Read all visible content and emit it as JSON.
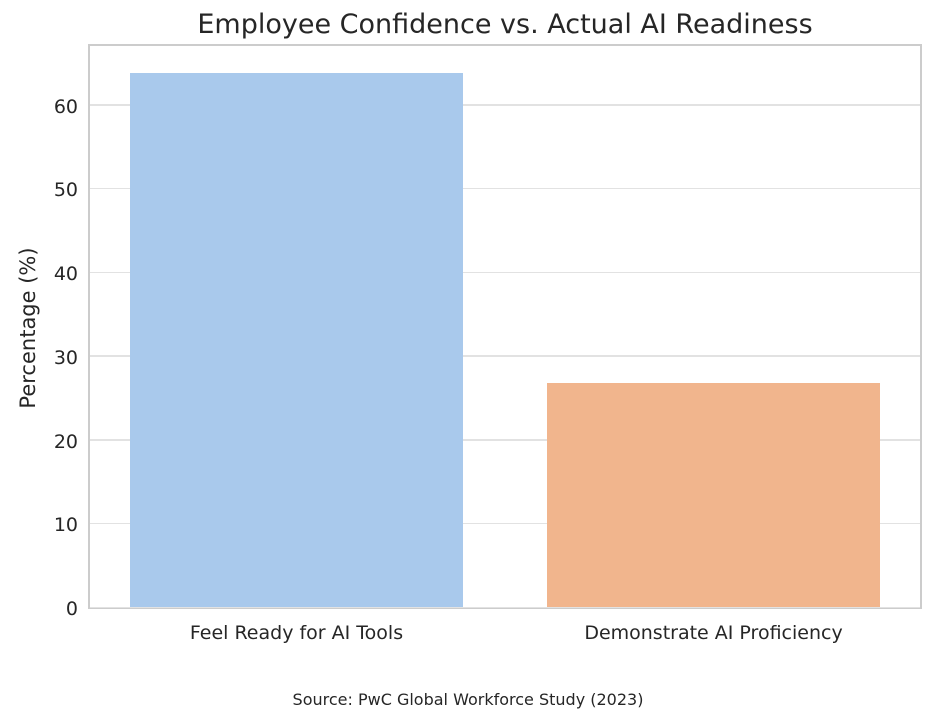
{
  "chart_data": {
    "type": "bar",
    "title": "Employee Confidence vs. Actual AI Readiness",
    "categories": [
      "Feel Ready for AI Tools",
      "Demonstrate AI Proficiency"
    ],
    "values": [
      64,
      27
    ],
    "bar_colors": [
      "#a9c9ec",
      "#f1b58d"
    ],
    "xlabel": "",
    "ylabel": "Percentage (%)",
    "ylim": [
      0,
      67.5
    ],
    "yticks": [
      0,
      10,
      20,
      30,
      40,
      50,
      60
    ],
    "grid": true,
    "legend_position": "none",
    "source": "Source: PwC Global Workforce Study (2023)"
  },
  "colors": {
    "grid": "#e2e2e2",
    "spine": "#cccccc",
    "text": "#262626",
    "background": "#ffffff"
  }
}
